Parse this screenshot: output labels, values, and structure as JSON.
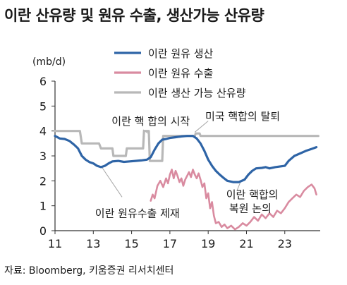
{
  "title": "이란 산유량 및 원유 수출, 생산가능 산유량",
  "source": "자료: Bloomberg, 키움증권 리서치센터",
  "chart_data": {
    "type": "line",
    "unit_label": "(mb/d)",
    "xlim": [
      2011,
      2024.85
    ],
    "ylim": [
      0,
      6
    ],
    "x_ticks": [
      11,
      13,
      15,
      17,
      19,
      21,
      23
    ],
    "y_ticks": [
      0,
      1,
      2,
      3,
      4,
      5,
      6
    ],
    "grid": false,
    "legend_position": "top",
    "series": [
      {
        "name": "이란 원유 생산",
        "color": "#2e64a6",
        "points": [
          [
            2011.0,
            3.8
          ],
          [
            2011.25,
            3.7
          ],
          [
            2011.5,
            3.68
          ],
          [
            2011.75,
            3.6
          ],
          [
            2012.0,
            3.45
          ],
          [
            2012.2,
            3.3
          ],
          [
            2012.4,
            3.0
          ],
          [
            2012.6,
            2.85
          ],
          [
            2012.8,
            2.75
          ],
          [
            2013.0,
            2.7
          ],
          [
            2013.2,
            2.6
          ],
          [
            2013.4,
            2.55
          ],
          [
            2013.6,
            2.6
          ],
          [
            2013.8,
            2.7
          ],
          [
            2014.0,
            2.78
          ],
          [
            2014.3,
            2.8
          ],
          [
            2014.6,
            2.76
          ],
          [
            2014.9,
            2.78
          ],
          [
            2015.2,
            2.8
          ],
          [
            2015.5,
            2.82
          ],
          [
            2015.8,
            2.85
          ],
          [
            2016.0,
            2.95
          ],
          [
            2016.2,
            3.25
          ],
          [
            2016.4,
            3.5
          ],
          [
            2016.6,
            3.65
          ],
          [
            2016.8,
            3.68
          ],
          [
            2017.0,
            3.72
          ],
          [
            2017.3,
            3.75
          ],
          [
            2017.6,
            3.78
          ],
          [
            2017.9,
            3.8
          ],
          [
            2018.2,
            3.8
          ],
          [
            2018.4,
            3.7
          ],
          [
            2018.6,
            3.5
          ],
          [
            2018.8,
            3.2
          ],
          [
            2019.0,
            2.85
          ],
          [
            2019.2,
            2.6
          ],
          [
            2019.4,
            2.4
          ],
          [
            2019.6,
            2.25
          ],
          [
            2019.8,
            2.12
          ],
          [
            2020.0,
            2.0
          ],
          [
            2020.3,
            1.95
          ],
          [
            2020.6,
            1.95
          ],
          [
            2020.9,
            2.05
          ],
          [
            2021.1,
            2.25
          ],
          [
            2021.3,
            2.4
          ],
          [
            2021.5,
            2.5
          ],
          [
            2021.8,
            2.52
          ],
          [
            2022.0,
            2.55
          ],
          [
            2022.2,
            2.5
          ],
          [
            2022.5,
            2.55
          ],
          [
            2022.8,
            2.58
          ],
          [
            2023.0,
            2.6
          ],
          [
            2023.2,
            2.8
          ],
          [
            2023.5,
            3.0
          ],
          [
            2023.8,
            3.1
          ],
          [
            2024.1,
            3.2
          ],
          [
            2024.4,
            3.28
          ],
          [
            2024.65,
            3.35
          ]
        ]
      },
      {
        "name": "이란 원유 수출",
        "color": "#d98ba0",
        "points": [
          [
            2016.0,
            1.2
          ],
          [
            2016.1,
            1.45
          ],
          [
            2016.2,
            1.3
          ],
          [
            2016.35,
            1.8
          ],
          [
            2016.5,
            2.0
          ],
          [
            2016.65,
            1.75
          ],
          [
            2016.8,
            2.1
          ],
          [
            2016.9,
            1.9
          ],
          [
            2017.0,
            2.25
          ],
          [
            2017.1,
            2.45
          ],
          [
            2017.2,
            2.1
          ],
          [
            2017.3,
            2.4
          ],
          [
            2017.4,
            2.2
          ],
          [
            2017.5,
            1.95
          ],
          [
            2017.6,
            2.1
          ],
          [
            2017.7,
            1.8
          ],
          [
            2017.8,
            2.05
          ],
          [
            2017.9,
            2.2
          ],
          [
            2018.0,
            2.35
          ],
          [
            2018.1,
            2.15
          ],
          [
            2018.2,
            2.45
          ],
          [
            2018.3,
            2.25
          ],
          [
            2018.4,
            2.1
          ],
          [
            2018.5,
            2.3
          ],
          [
            2018.6,
            2.05
          ],
          [
            2018.7,
            1.75
          ],
          [
            2018.8,
            1.9
          ],
          [
            2018.9,
            1.3
          ],
          [
            2019.0,
            1.5
          ],
          [
            2019.1,
            0.9
          ],
          [
            2019.2,
            1.15
          ],
          [
            2019.3,
            0.6
          ],
          [
            2019.4,
            0.3
          ],
          [
            2019.55,
            0.35
          ],
          [
            2019.7,
            0.15
          ],
          [
            2019.85,
            0.25
          ],
          [
            2020.0,
            0.1
          ],
          [
            2020.2,
            0.2
          ],
          [
            2020.4,
            0.05
          ],
          [
            2020.6,
            0.15
          ],
          [
            2020.8,
            0.3
          ],
          [
            2021.0,
            0.2
          ],
          [
            2021.2,
            0.35
          ],
          [
            2021.4,
            0.55
          ],
          [
            2021.6,
            0.4
          ],
          [
            2021.8,
            0.65
          ],
          [
            2022.0,
            0.5
          ],
          [
            2022.2,
            0.7
          ],
          [
            2022.4,
            0.55
          ],
          [
            2022.6,
            0.8
          ],
          [
            2022.8,
            0.7
          ],
          [
            2023.0,
            0.9
          ],
          [
            2023.2,
            1.15
          ],
          [
            2023.4,
            1.3
          ],
          [
            2023.6,
            1.45
          ],
          [
            2023.8,
            1.35
          ],
          [
            2024.0,
            1.6
          ],
          [
            2024.2,
            1.75
          ],
          [
            2024.4,
            1.85
          ],
          [
            2024.55,
            1.7
          ],
          [
            2024.65,
            1.45
          ]
        ]
      },
      {
        "name": "이란 생산 가능 산유량",
        "color": "#b8b8b8",
        "points": [
          [
            2011.0,
            4.0
          ],
          [
            2012.3,
            4.0
          ],
          [
            2012.4,
            3.5
          ],
          [
            2013.3,
            3.5
          ],
          [
            2013.4,
            3.3
          ],
          [
            2014.0,
            3.3
          ],
          [
            2014.05,
            3.0
          ],
          [
            2014.7,
            3.0
          ],
          [
            2014.75,
            3.3
          ],
          [
            2015.6,
            3.3
          ],
          [
            2015.65,
            4.0
          ],
          [
            2015.9,
            4.0
          ],
          [
            2015.95,
            2.8
          ],
          [
            2016.6,
            2.8
          ],
          [
            2016.65,
            3.8
          ],
          [
            2018.3,
            3.8
          ],
          [
            2018.35,
            3.9
          ],
          [
            2018.55,
            3.9
          ],
          [
            2018.6,
            3.8
          ],
          [
            2024.75,
            3.8
          ]
        ]
      }
    ],
    "annotations": [
      {
        "text": "이란 핵 합의 시작",
        "x": 2016.0,
        "y": 4.25
      },
      {
        "text": "미국 핵합의 탈퇴",
        "x": 2020.8,
        "y": 4.45
      },
      {
        "text": "이란 원유수출 제재",
        "x": 2015.3,
        "y": 0.55
      },
      {
        "text": "이란 핵합의",
        "x": 2021.3,
        "y": 1.3
      },
      {
        "text": "복원 논의",
        "x": 2021.2,
        "y": 0.75
      }
    ]
  }
}
